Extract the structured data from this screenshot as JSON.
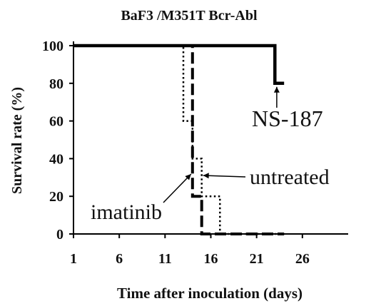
{
  "chart_data": {
    "type": "line",
    "title": "BaF3 /M351T Bcr-Abl",
    "xlabel": "Time after inoculation (days)",
    "ylabel": "Survival rate (%)",
    "xlim": [
      1,
      31
    ],
    "ylim": [
      0,
      100
    ],
    "xticks": [
      1,
      6,
      11,
      16,
      21,
      26
    ],
    "yticks": [
      0,
      20,
      40,
      60,
      80,
      100
    ],
    "grid": false,
    "series": [
      {
        "name": "NS-187",
        "style": "solid",
        "steps": [
          [
            1,
            100
          ],
          [
            23,
            100
          ],
          [
            23,
            80
          ],
          [
            24,
            80
          ]
        ]
      },
      {
        "name": "imatinib",
        "style": "dashed",
        "steps": [
          [
            1,
            100
          ],
          [
            14,
            100
          ],
          [
            14,
            20
          ],
          [
            15,
            20
          ],
          [
            15,
            0
          ],
          [
            24,
            0
          ]
        ]
      },
      {
        "name": "untreated",
        "style": "dotted",
        "steps": [
          [
            1,
            100
          ],
          [
            13,
            100
          ],
          [
            13,
            60
          ],
          [
            14,
            60
          ],
          [
            14,
            40
          ],
          [
            15,
            40
          ],
          [
            15,
            20
          ],
          [
            17,
            20
          ],
          [
            17,
            0
          ],
          [
            24,
            0
          ]
        ]
      }
    ],
    "annotations": [
      {
        "text": "NS-187",
        "x": 23,
        "y": 80
      },
      {
        "text": "untreated",
        "x": 15,
        "y": 30
      },
      {
        "text": "imatinib",
        "x": 14,
        "y": 32
      }
    ]
  }
}
